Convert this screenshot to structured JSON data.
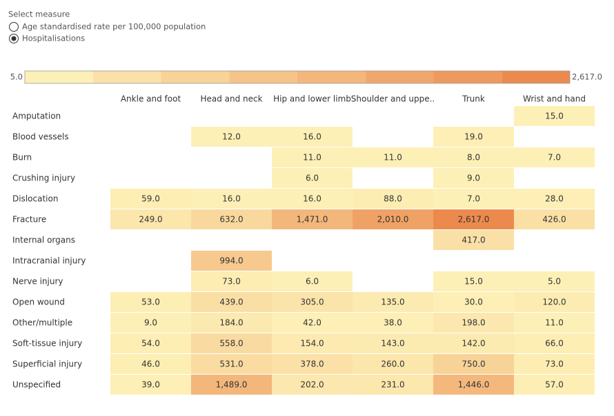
{
  "filter": {
    "label": "Select measure",
    "options": [
      "Age standardised rate per 100,000 population",
      "Hospitalisations"
    ],
    "selected": 1
  },
  "chart_data": {
    "type": "heatmap",
    "x": [
      "Ankle and foot",
      "Head and neck",
      "Hip and lower limb",
      "Shoulder and uppe..",
      "Trunk",
      "Wrist and hand"
    ],
    "y": [
      "Amputation",
      "Blood vessels",
      "Burn",
      "Crushing injury",
      "Dislocation",
      "Fracture",
      "Internal organs",
      "Intracranial injury",
      "Nerve injury",
      "Open wound",
      "Other/multiple",
      "Soft-tissue injury",
      "Superficial injury",
      "Unspecified"
    ],
    "values": [
      [
        null,
        null,
        null,
        null,
        null,
        15
      ],
      [
        null,
        12,
        16,
        null,
        19,
        null
      ],
      [
        null,
        null,
        11,
        11,
        8,
        7
      ],
      [
        null,
        null,
        6,
        null,
        9,
        null
      ],
      [
        59,
        16,
        16,
        88,
        7,
        28
      ],
      [
        249,
        632,
        1471,
        2010,
        2617,
        426
      ],
      [
        null,
        null,
        null,
        null,
        417,
        null
      ],
      [
        null,
        994,
        null,
        null,
        null,
        null
      ],
      [
        null,
        73,
        6,
        null,
        15,
        5
      ],
      [
        53,
        439,
        305,
        135,
        30,
        120
      ],
      [
        9,
        184,
        42,
        38,
        198,
        11
      ],
      [
        54,
        558,
        154,
        143,
        142,
        66
      ],
      [
        46,
        531,
        378,
        260,
        750,
        73
      ],
      [
        39,
        1489,
        202,
        231,
        1446,
        57
      ]
    ],
    "value_labels": [
      [
        null,
        null,
        null,
        null,
        null,
        "15.0"
      ],
      [
        null,
        "12.0",
        "16.0",
        null,
        "19.0",
        null
      ],
      [
        null,
        null,
        "11.0",
        "11.0",
        "8.0",
        "7.0"
      ],
      [
        null,
        null,
        "6.0",
        null,
        "9.0",
        null
      ],
      [
        "59.0",
        "16.0",
        "16.0",
        "88.0",
        "7.0",
        "28.0"
      ],
      [
        "249.0",
        "632.0",
        "1,471.0",
        "2,010.0",
        "2,617.0",
        "426.0"
      ],
      [
        null,
        null,
        null,
        null,
        "417.0",
        null
      ],
      [
        null,
        "994.0",
        null,
        null,
        null,
        null
      ],
      [
        null,
        "73.0",
        "6.0",
        null,
        "15.0",
        "5.0"
      ],
      [
        "53.0",
        "439.0",
        "305.0",
        "135.0",
        "30.0",
        "120.0"
      ],
      [
        "9.0",
        "184.0",
        "42.0",
        "38.0",
        "198.0",
        "11.0"
      ],
      [
        "54.0",
        "558.0",
        "154.0",
        "143.0",
        "142.0",
        "66.0"
      ],
      [
        "46.0",
        "531.0",
        "378.0",
        "260.0",
        "750.0",
        "73.0"
      ],
      [
        "39.0",
        "1,489.0",
        "202.0",
        "231.0",
        "1,446.0",
        "57.0"
      ]
    ],
    "clim": [
      5,
      2617
    ],
    "cticks": [
      {
        "value": 5,
        "label": "5.0"
      },
      {
        "value": 2617,
        "label": "2,617.0"
      }
    ],
    "colormap": [
      "#fdf0b6",
      "#ec8a4e"
    ]
  }
}
